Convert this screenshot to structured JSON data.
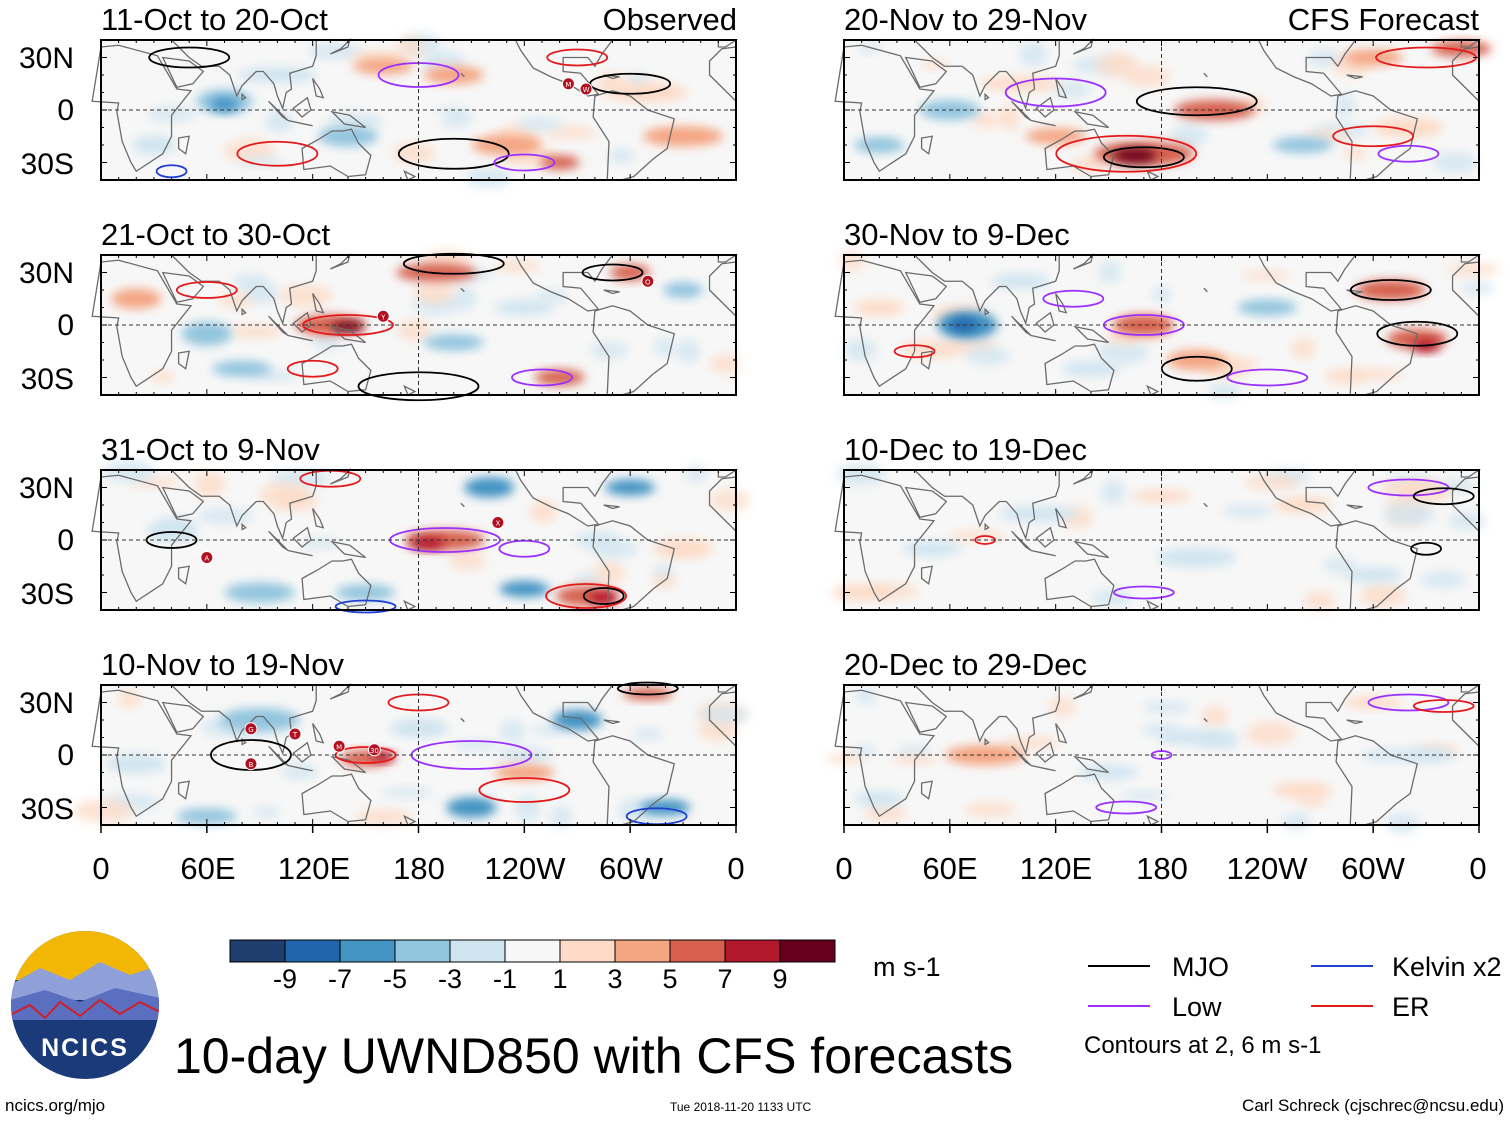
{
  "chart_data": {
    "type": "heatmap",
    "variable": "10-day UWND850 anomaly",
    "title": "10-day UWND850 with CFS forecasts",
    "units": "m s-1",
    "columns": [
      {
        "label": "Observed",
        "panels": [
          "11-Oct to 20-Oct",
          "21-Oct to 30-Oct",
          "31-Oct to 9-Nov",
          "10-Nov to 19-Nov"
        ]
      },
      {
        "label": "CFS Forecast",
        "panels": [
          "20-Nov to 29-Nov",
          "30-Nov to 9-Dec",
          "10-Dec to 19-Dec",
          "20-Dec to 29-Dec"
        ]
      }
    ],
    "x_axis": {
      "ticks": [
        "0",
        "60E",
        "120E",
        "180",
        "120W",
        "60W",
        "0"
      ],
      "range_deg": [
        0,
        360
      ]
    },
    "y_axis": {
      "ticks": [
        "30N",
        "0",
        "30S"
      ],
      "range_deg": [
        -40,
        40
      ]
    },
    "colorbar": {
      "ticks": [
        "-9",
        "-7",
        "-5",
        "-3",
        "-1",
        "1",
        "3",
        "5",
        "7",
        "9"
      ],
      "colors": [
        "#1f3d6e",
        "#2166ac",
        "#4393c3",
        "#92c5de",
        "#d1e5f0",
        "#f7f7f7",
        "#fddbc7",
        "#f4a582",
        "#d6604d",
        "#b2182b",
        "#67001f"
      ]
    },
    "contour_legend": [
      {
        "name": "MJO",
        "color": "#000000"
      },
      {
        "name": "Low",
        "color": "#9b30ff"
      },
      {
        "name": "Kelvin x2",
        "color": "#1f3fd1"
      },
      {
        "name": "ER",
        "color": "#e31a1c"
      }
    ],
    "contour_note": "Contours at 2, 6 m s-1",
    "storm_markers": {
      "11-Oct to 20-Oct": [
        "M",
        "W"
      ],
      "21-Oct to 30-Oct": [
        "Y",
        "O"
      ],
      "31-Oct to 9-Nov": [
        "A",
        "X"
      ],
      "10-Nov to 19-Nov": [
        "G",
        "T",
        "B",
        "M",
        "30"
      ]
    }
  },
  "branding": {
    "logo_text": "NCICS",
    "site": "ncics.org/mjo",
    "timestamp": "Tue 2018-11-20 1133 UTC",
    "credit": "Carl Schreck (cjschrec@ncsu.edu)"
  }
}
